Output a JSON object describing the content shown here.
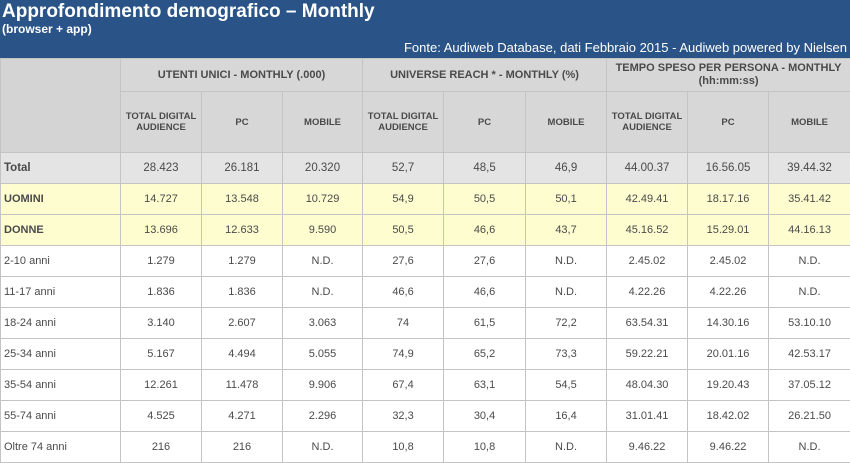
{
  "header": {
    "title": "Approfondimento demografico – Monthly",
    "subtitle": "(browser + app)",
    "source": "Fonte: Audiweb Database, dati Febbraio 2015 - Audiweb powered by Nielsen"
  },
  "colors": {
    "banner_bg": "#2a5487",
    "header_bg": "#d7d7d7",
    "total_bg": "#e4e4e4",
    "highlight_bg": "#fdfdd0",
    "text": "#4a4a4a"
  },
  "chart_data": {
    "type": "table",
    "groups": [
      "UTENTI UNICI - MONTHLY (.000)",
      "UNIVERSE REACH * - MONTHLY (%)",
      "TEMPO SPESO PER PERSONA - MONTHLY   (hh:mm:ss)"
    ],
    "subcolumns": [
      "TOTAL DIGITAL AUDIENCE",
      "PC",
      "MOBILE",
      "TOTAL DIGITAL AUDIENCE",
      "PC",
      "MOBILE",
      "TOTAL DIGITAL AUDIENCE",
      "PC",
      "MOBILE"
    ],
    "rows": [
      {
        "label": "Total",
        "style": "total",
        "values": [
          "28.423",
          "26.181",
          "20.320",
          "52,7",
          "48,5",
          "46,9",
          "44.00.37",
          "16.56.05",
          "39.44.32"
        ]
      },
      {
        "label": "UOMINI",
        "style": "highlight",
        "values": [
          "14.727",
          "13.548",
          "10.729",
          "54,9",
          "50,5",
          "50,1",
          "42.49.41",
          "18.17.16",
          "35.41.42"
        ]
      },
      {
        "label": "DONNE",
        "style": "highlight",
        "values": [
          "13.696",
          "12.633",
          "9.590",
          "50,5",
          "46,6",
          "43,7",
          "45.16.52",
          "15.29.01",
          "44.16.13"
        ]
      },
      {
        "label": "2-10 anni",
        "style": "normal",
        "values": [
          "1.279",
          "1.279",
          "N.D.",
          "27,6",
          "27,6",
          "N.D.",
          "2.45.02",
          "2.45.02",
          "N.D."
        ]
      },
      {
        "label": "11-17 anni",
        "style": "normal",
        "values": [
          "1.836",
          "1.836",
          "N.D.",
          "46,6",
          "46,6",
          "N.D.",
          "4.22.26",
          "4.22.26",
          "N.D."
        ]
      },
      {
        "label": "18-24 anni",
        "style": "normal",
        "values": [
          "3.140",
          "2.607",
          "3.063",
          "74",
          "61,5",
          "72,2",
          "63.54.31",
          "14.30.16",
          "53.10.10"
        ]
      },
      {
        "label": "25-34 anni",
        "style": "normal",
        "values": [
          "5.167",
          "4.494",
          "5.055",
          "74,9",
          "65,2",
          "73,3",
          "59.22.21",
          "20.01.16",
          "42.53.17"
        ]
      },
      {
        "label": "35-54 anni",
        "style": "normal",
        "values": [
          "12.261",
          "11.478",
          "9.906",
          "67,4",
          "63,1",
          "54,5",
          "48.04.30",
          "19.20.43",
          "37.05.12"
        ]
      },
      {
        "label": "55-74 anni",
        "style": "normal",
        "values": [
          "4.525",
          "4.271",
          "2.296",
          "32,3",
          "30,4",
          "16,4",
          "31.01.41",
          "18.42.02",
          "26.21.50"
        ]
      },
      {
        "label": "Oltre 74 anni",
        "style": "normal",
        "values": [
          "216",
          "216",
          "N.D.",
          "10,8",
          "10,8",
          "N.D.",
          "9.46.22",
          "9.46.22",
          "N.D."
        ]
      }
    ]
  }
}
